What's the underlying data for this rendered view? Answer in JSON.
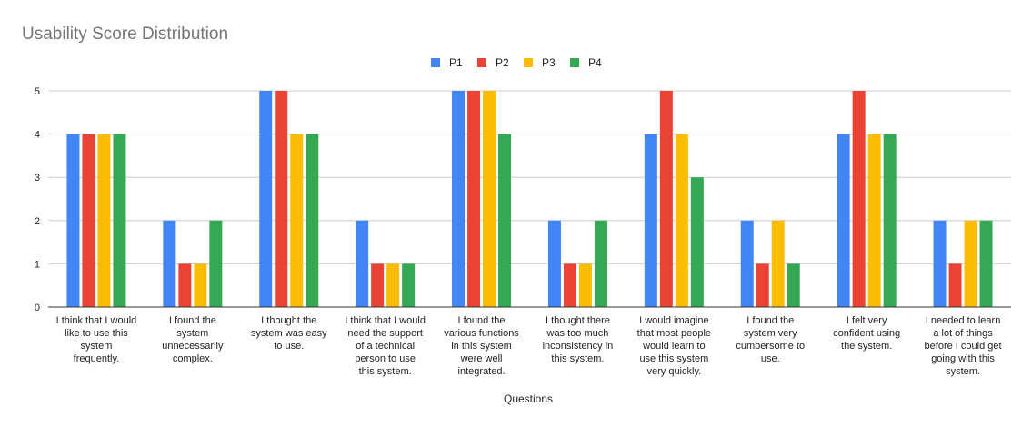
{
  "chart_data": {
    "type": "bar",
    "title": "Usability Score Distribution",
    "xlabel": "Questions",
    "ylabel": "",
    "ylim": [
      0,
      5
    ],
    "yticks": [
      "0",
      "1",
      "2",
      "3",
      "4",
      "5"
    ],
    "legend_position": "top-center",
    "grid": true,
    "categories": [
      [
        "I think that I would",
        "like to use this",
        "system",
        "frequently."
      ],
      [
        "I found the",
        "system",
        "unnecessarily",
        "complex."
      ],
      [
        "I thought the",
        "system was easy",
        "to use."
      ],
      [
        "I think that I would",
        "need the support",
        "of a technical",
        "person to use",
        "this system."
      ],
      [
        "I found the",
        "various functions",
        "in this system",
        "were well",
        "integrated."
      ],
      [
        "I thought there",
        "was too much",
        "inconsistency in",
        "this system."
      ],
      [
        "I would imagine",
        "that most people",
        "would learn to",
        "use this system",
        "very quickly."
      ],
      [
        "I found the",
        "system very",
        "cumbersome to",
        "use."
      ],
      [
        "I felt very",
        "confident using",
        "the system."
      ],
      [
        "I needed to learn",
        "a lot of things",
        "before I could get",
        "going with this",
        "system."
      ]
    ],
    "series": [
      {
        "name": "P1",
        "color": "#4285F4",
        "values": [
          4,
          2,
          5,
          2,
          5,
          2,
          4,
          2,
          4,
          2
        ]
      },
      {
        "name": "P2",
        "color": "#EA4335",
        "values": [
          4,
          1,
          5,
          1,
          5,
          1,
          5,
          1,
          5,
          1
        ]
      },
      {
        "name": "P3",
        "color": "#FBBC04",
        "values": [
          4,
          1,
          4,
          1,
          5,
          1,
          4,
          2,
          4,
          2
        ]
      },
      {
        "name": "P4",
        "color": "#34A853",
        "values": [
          4,
          2,
          4,
          1,
          4,
          2,
          3,
          1,
          4,
          2
        ]
      }
    ]
  }
}
